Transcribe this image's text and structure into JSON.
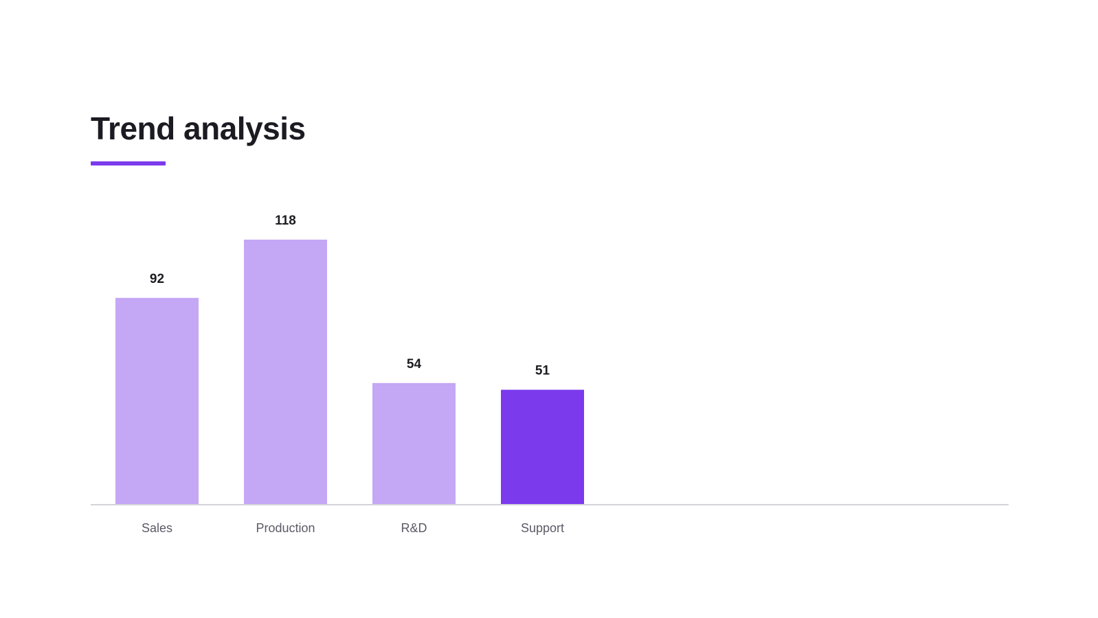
{
  "page": {
    "title": "Trend analysis",
    "accent_color": "#7c3aed"
  },
  "chart_data": {
    "type": "bar",
    "title": "Trend analysis",
    "categories": [
      "Sales",
      "Production",
      "R&D",
      "Support"
    ],
    "values": [
      92,
      118,
      54,
      51
    ],
    "bar_colors": [
      "#c4a7f5",
      "#c4a7f5",
      "#c4a7f5",
      "#7c3aed"
    ],
    "highlight_index": 3,
    "axis_color": "#d4d4d8",
    "ylim": [
      0,
      118
    ],
    "grid": false,
    "data_labels": true,
    "xlabel": "",
    "ylabel": ""
  }
}
